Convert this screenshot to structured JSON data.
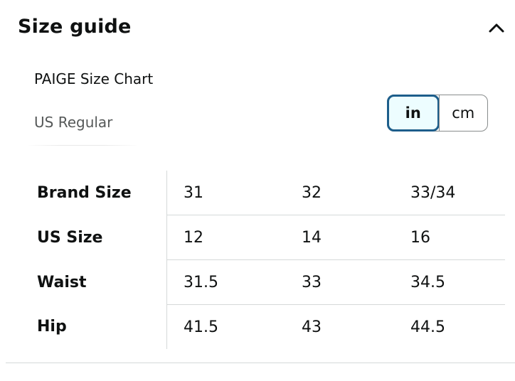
{
  "size_guide": {
    "title": "Size guide",
    "collapse_icon": "chevron-up-icon",
    "chart_name": "PAIGE Size Chart",
    "fit_name": "US Regular",
    "units": {
      "options": [
        "in",
        "cm"
      ],
      "selected": "in"
    },
    "table": {
      "rows": [
        {
          "label": "Brand Size",
          "values": [
            "31",
            "32",
            "33/34"
          ]
        },
        {
          "label": "US Size",
          "values": [
            "12",
            "14",
            "16"
          ]
        },
        {
          "label": "Waist",
          "values": [
            "31.5",
            "33",
            "34.5"
          ]
        },
        {
          "label": "Hip",
          "values": [
            "41.5",
            "43",
            "44.5"
          ]
        }
      ]
    },
    "colors": {
      "selected_border": "#1d5e8b",
      "selected_fill": "#edfdff",
      "divider": "#d5d9d9",
      "secondary_text": "#565959"
    }
  }
}
